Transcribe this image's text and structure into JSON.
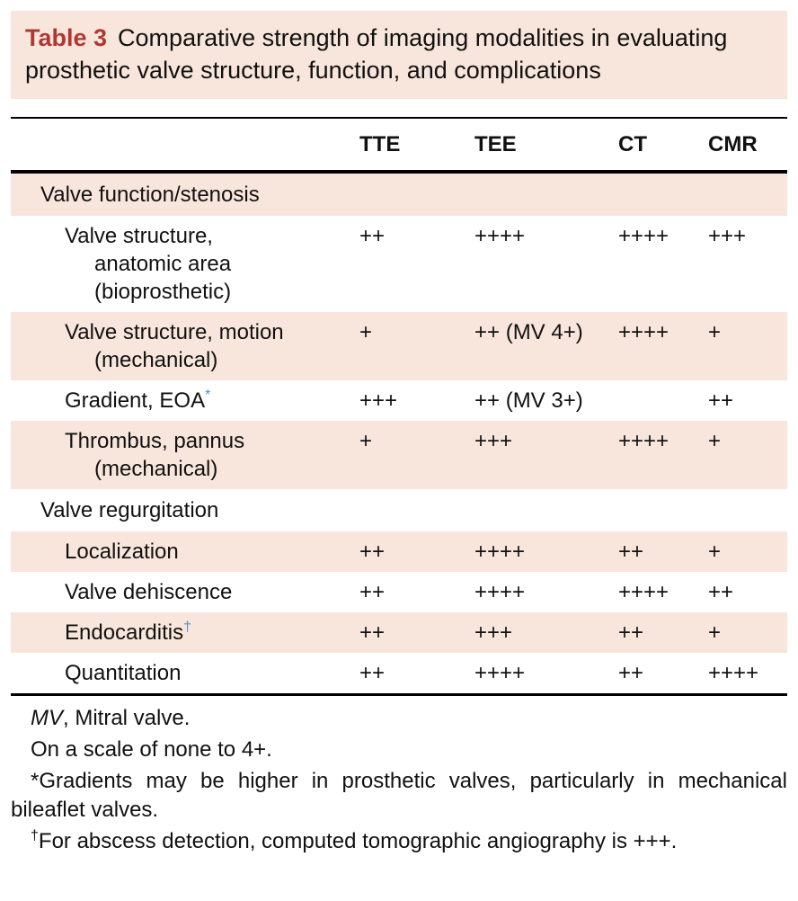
{
  "title": {
    "label": "Table 3",
    "text": "Comparative strength of imaging modalities in evaluating prosthetic valve structure, function, and complications"
  },
  "columns": [
    "TTE",
    "TEE",
    "CT",
    "CMR"
  ],
  "rows": [
    {
      "type": "section",
      "label": "Valve function/stenosis"
    },
    {
      "type": "data",
      "label": "Valve structure,\nanatomic area\n(bioprosthetic)",
      "values": [
        "++",
        "++++",
        "++++",
        "+++"
      ]
    },
    {
      "type": "data",
      "label": "Valve structure, motion\n(mechanical)",
      "values": [
        "+",
        "++ (MV 4+)",
        "++++",
        "+"
      ]
    },
    {
      "type": "data",
      "label": "Gradient, EOA",
      "marker": "*",
      "values": [
        "+++",
        "++ (MV 3+)",
        "",
        "++"
      ]
    },
    {
      "type": "data",
      "label": "Thrombus, pannus\n(mechanical)",
      "values": [
        "+",
        "+++",
        "++++",
        "+"
      ]
    },
    {
      "type": "section",
      "label": "Valve regurgitation"
    },
    {
      "type": "data",
      "label": "Localization",
      "values": [
        "++",
        "++++",
        "++",
        "+"
      ]
    },
    {
      "type": "data",
      "label": "Valve dehiscence",
      "values": [
        "++",
        "++++",
        "++++",
        "++"
      ]
    },
    {
      "type": "data",
      "label": "Endocarditis",
      "marker": "†",
      "values": [
        "++",
        "+++",
        "++",
        "+"
      ]
    },
    {
      "type": "data",
      "label": "Quantitation",
      "values": [
        "++",
        "++++",
        "++",
        "++++"
      ]
    }
  ],
  "footnotes": {
    "abbrev_italic": "MV",
    "abbrev_rest": ", Mitral valve.",
    "scale": "On a scale of none to 4+.",
    "star": "*Gradients may be higher in prosthetic valves, particularly in mechanical bileaflet valves.",
    "dagger_symbol": "†",
    "dagger_text": "For abscess detection, computed tomographic angiography is +++."
  },
  "colors": {
    "title_red": "#b13832",
    "row_shade": "#f8e6dc",
    "marker_blue": "#4e94c8"
  }
}
